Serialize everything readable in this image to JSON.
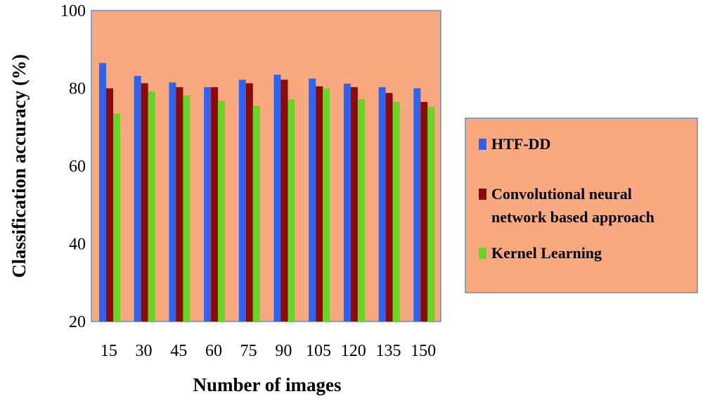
{
  "chart_data": {
    "type": "bar",
    "title": "",
    "xlabel": "Number of images",
    "ylabel": "Classification accuracy (%)",
    "ylim": [
      20,
      100
    ],
    "yticks": [
      "20",
      "40",
      "60",
      "80",
      "100"
    ],
    "categories": [
      "15",
      "30",
      "45",
      "60",
      "75",
      "90",
      "105",
      "120",
      "135",
      "150"
    ],
    "series": [
      {
        "name": "HTF-DD",
        "color": "#2f62f0",
        "values": [
          86.5,
          83.2,
          81.5,
          80.3,
          82.2,
          83.5,
          82.5,
          81.2,
          80.3,
          80.0
        ]
      },
      {
        "name": "Convolutional neural network based approach",
        "color": "#8b0a0a",
        "values": [
          80.0,
          81.3,
          80.3,
          80.3,
          81.3,
          82.2,
          80.5,
          80.3,
          78.8,
          76.5
        ]
      },
      {
        "name": "Kernel Learning",
        "color": "#66d625",
        "values": [
          73.5,
          79.2,
          78.2,
          76.8,
          75.5,
          77.2,
          80.0,
          77.2,
          76.5,
          75.2
        ]
      }
    ],
    "legend": {
      "position": "right",
      "lines": [
        [
          "HTF-DD"
        ],
        [
          "Convolutional neural",
          "network based approach"
        ],
        [
          "Kernel Learning"
        ]
      ]
    },
    "plot_background": "#f9a97f",
    "grid": false
  }
}
